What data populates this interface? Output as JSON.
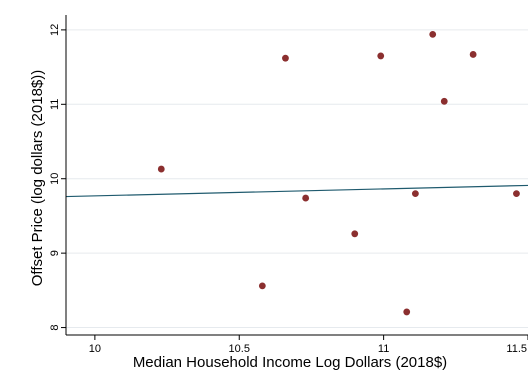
{
  "chart_data": {
    "type": "scatter",
    "xlabel": "Median Household Income Log Dollars (2018$)",
    "ylabel": "Offset Price (log dollars (2018$))",
    "xlim": [
      9.9,
      11.5
    ],
    "ylim": [
      7.9,
      12.2
    ],
    "x_ticks": [
      10,
      10.5,
      11,
      11.5
    ],
    "x_tick_labels": [
      "10",
      "10.5",
      "11",
      "11.5"
    ],
    "y_ticks": [
      8,
      9,
      10,
      11,
      12
    ],
    "y_tick_labels": [
      "8",
      "9",
      "10",
      "11",
      "12"
    ],
    "grid": true,
    "points": [
      {
        "x": 10.23,
        "y": 10.13
      },
      {
        "x": 10.58,
        "y": 8.56
      },
      {
        "x": 10.66,
        "y": 11.62
      },
      {
        "x": 10.73,
        "y": 9.74
      },
      {
        "x": 10.9,
        "y": 9.26
      },
      {
        "x": 10.99,
        "y": 11.65
      },
      {
        "x": 11.08,
        "y": 8.21
      },
      {
        "x": 11.11,
        "y": 9.8
      },
      {
        "x": 11.17,
        "y": 11.94
      },
      {
        "x": 11.21,
        "y": 11.04
      },
      {
        "x": 11.31,
        "y": 11.67
      },
      {
        "x": 11.46,
        "y": 9.8
      }
    ],
    "fit_line": {
      "x": [
        9.9,
        11.5
      ],
      "y": [
        9.76,
        9.91
      ]
    },
    "colors": {
      "points": "#8b2f2f",
      "fit_line": "#1f5a6e",
      "grid": "#e6eaee",
      "axis": "#000000"
    }
  }
}
